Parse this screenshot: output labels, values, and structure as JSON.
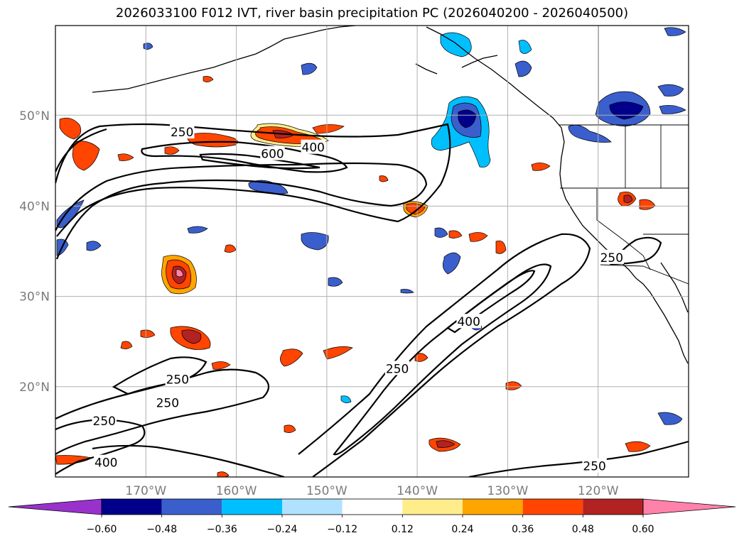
{
  "title": "2026033100 F012 IVT, river basin precipitation PC (2026040200 - 2026040500)",
  "map": {
    "lon_range": [
      -180,
      -110
    ],
    "lat_range": [
      10,
      60
    ],
    "lon_ticks": [
      {
        "lon": -170,
        "label": "170°W"
      },
      {
        "lon": -160,
        "label": "160°W"
      },
      {
        "lon": -150,
        "label": "150°W"
      },
      {
        "lon": -140,
        "label": "140°W"
      },
      {
        "lon": -130,
        "label": "130°W"
      },
      {
        "lon": -120,
        "label": "120°W"
      }
    ],
    "lat_ticks": [
      {
        "lat": 50,
        "label": "50°N"
      },
      {
        "lat": 40,
        "label": "40°N"
      },
      {
        "lat": 30,
        "label": "30°N"
      },
      {
        "lat": 20,
        "label": "20°N"
      }
    ],
    "ivt_contour_labels": [
      {
        "text": "250",
        "lon": -166.0,
        "lat": 48.2
      },
      {
        "text": "600",
        "lon": -156.0,
        "lat": 45.8
      },
      {
        "text": "400",
        "lon": -151.5,
        "lat": 46.5
      },
      {
        "text": "250",
        "lon": -118.5,
        "lat": 34.3
      },
      {
        "text": "400",
        "lon": -134.3,
        "lat": 27.2
      },
      {
        "text": "250",
        "lon": -142.2,
        "lat": 22.0
      },
      {
        "text": "250",
        "lon": -166.5,
        "lat": 20.8
      },
      {
        "text": "250",
        "lon": -167.6,
        "lat": 18.2
      },
      {
        "text": "250",
        "lon": -174.6,
        "lat": 16.2
      },
      {
        "text": "400",
        "lon": -174.4,
        "lat": 11.6
      },
      {
        "text": "250",
        "lon": -120.4,
        "lat": 11.2
      }
    ]
  },
  "colorbar": {
    "tick_labels": [
      "−0.60",
      "−0.48",
      "−0.36",
      "−0.24",
      "−0.12",
      "0.12",
      "0.24",
      "0.36",
      "0.48",
      "0.60"
    ],
    "colors": [
      "#9932cc",
      "#00008b",
      "#3a5fcd",
      "#00bfff",
      "#b0e2ff",
      "#ffffff",
      "#ffec8b",
      "#ffa500",
      "#ff4500",
      "#b22222",
      "#ff82ab"
    ]
  }
}
